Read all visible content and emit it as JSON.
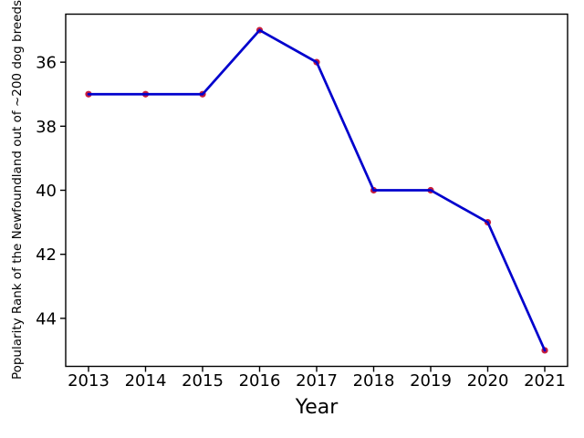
{
  "chart_data": {
    "type": "line",
    "title": "",
    "xlabel": "Year",
    "ylabel": "Popularity Rank of the Newfoundland out of ~200 dog breeds",
    "x": [
      2013,
      2014,
      2015,
      2016,
      2017,
      2018,
      2019,
      2020,
      2021
    ],
    "series": [
      {
        "name": "Newfoundland popularity rank",
        "values": [
          37,
          37,
          37,
          35,
          36,
          40,
          40,
          41,
          45
        ]
      }
    ],
    "x_ticks": [
      2013,
      2014,
      2015,
      2016,
      2017,
      2018,
      2019,
      2020,
      2021
    ],
    "y_ticks": [
      36,
      38,
      40,
      42,
      44
    ],
    "xlim": [
      2012.6,
      2021.4
    ],
    "ylim": [
      34.5,
      45.5
    ],
    "y_axis_inverted": true,
    "grid": false,
    "legend": "none",
    "line_color": "#0000cd",
    "marker_color": "#c81e3c",
    "axis_color": "#000000",
    "background_color": "#ffffff"
  }
}
